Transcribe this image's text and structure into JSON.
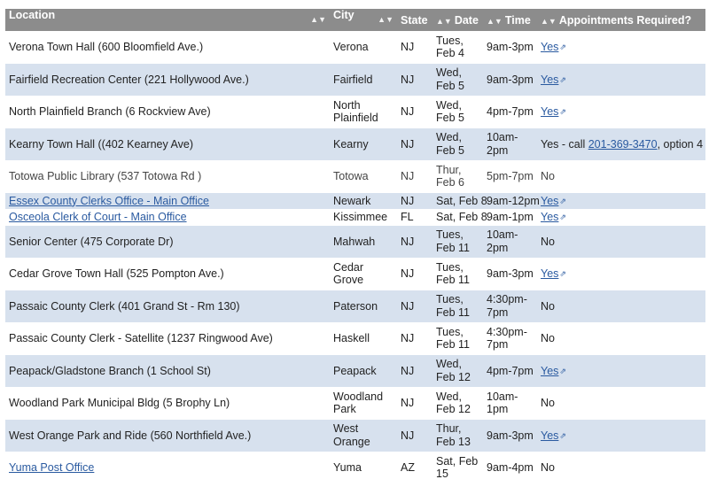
{
  "columns": {
    "location": "Location",
    "city": "City",
    "state": "State",
    "date": "Date",
    "time": "Time",
    "appointments": "Appointments Required?"
  },
  "sort_icon": "sort-arrows-icon",
  "external_icon": "external-link-icon",
  "rows": [
    {
      "location": "Verona Town Hall (600 Bloomfield Ave.)",
      "city": "Verona",
      "state": "NJ",
      "date": "Tues, Feb 4",
      "time": "9am-3pm",
      "appt": "Yes"
    },
    {
      "location": "Fairfield Recreation Center (221 Hollywood Ave.)",
      "city": "Fairfield",
      "state": "NJ",
      "date": "Wed, Feb 5",
      "time": "9am-3pm",
      "appt": "Yes"
    },
    {
      "location": "North Plainfield Branch (6 Rockview Ave)",
      "city": "North Plainfield",
      "state": "NJ",
      "date": "Wed, Feb 5",
      "time": "4pm-7pm",
      "appt": "Yes"
    },
    {
      "location": "Kearny Town Hall ((402 Kearney Ave)",
      "city": "Kearny",
      "state": "NJ",
      "date": "Wed, Feb 5",
      "time": "10am-2pm",
      "appt_prefix": "Yes - call ",
      "appt_phone": "201-369-3470",
      "appt_suffix": ", option 4"
    },
    {
      "location": "Totowa Public Library (537 Totowa Rd )",
      "city": "Totowa",
      "state": "NJ",
      "date": "Thur, Feb 6",
      "time": "5pm-7pm",
      "appt": "No"
    },
    {
      "location": "Essex County Clerks Office - Main Office",
      "city": "Newark",
      "state": "NJ",
      "date": "Sat, Feb 8",
      "time": "9am-12pm",
      "appt": "Yes"
    },
    {
      "location": "Osceola Clerk of Court - Main Office",
      "city": "Kissimmee",
      "state": "FL",
      "date": "Sat, Feb 8",
      "time": "9am-1pm",
      "appt": "Yes"
    },
    {
      "location": "Senior Center (475 Corporate Dr)",
      "city": "Mahwah",
      "state": "NJ",
      "date": "Tues, Feb 11",
      "time": "10am-2pm",
      "appt": "No"
    },
    {
      "location": "Cedar Grove Town Hall (525 Pompton Ave.)",
      "city": "Cedar Grove",
      "state": "NJ",
      "date": "Tues, Feb 11",
      "time": "9am-3pm",
      "appt": "Yes"
    },
    {
      "location": "Passaic County Clerk (401 Grand St - Rm 130)",
      "city": "Paterson",
      "state": "NJ",
      "date": "Tues, Feb 11",
      "time": "4:30pm-7pm",
      "appt": "No"
    },
    {
      "location": "Passaic County Clerk - Satellite (1237 Ringwood Ave)",
      "city": "Haskell",
      "state": "NJ",
      "date": "Tues, Feb 11",
      "time": "4:30pm-7pm",
      "appt": "No"
    },
    {
      "location": "Peapack/Gladstone Branch (1 School St)",
      "city": "Peapack",
      "state": "NJ",
      "date": "Wed, Feb 12",
      "time": "4pm-7pm",
      "appt": "Yes"
    },
    {
      "location": "Woodland Park Municipal Bldg (5 Brophy Ln)",
      "city": "Woodland Park",
      "state": "NJ",
      "date": "Wed, Feb 12",
      "time": "10am-1pm",
      "appt": "No"
    },
    {
      "location": "West Orange Park and Ride (560 Northfield Ave.)",
      "city": "West Orange",
      "state": "NJ",
      "date": "Thur, Feb 13",
      "time": "9am-3pm",
      "appt": "Yes"
    },
    {
      "location": "Yuma Post Office",
      "city": "Yuma",
      "state": "AZ",
      "date": "Sat, Feb 15",
      "time": "9am-4pm",
      "appt": "No"
    }
  ],
  "colors": {
    "header_bg": "#8c8c8c",
    "row_alt": "#d7e1ee",
    "link": "#2a5aa0"
  }
}
